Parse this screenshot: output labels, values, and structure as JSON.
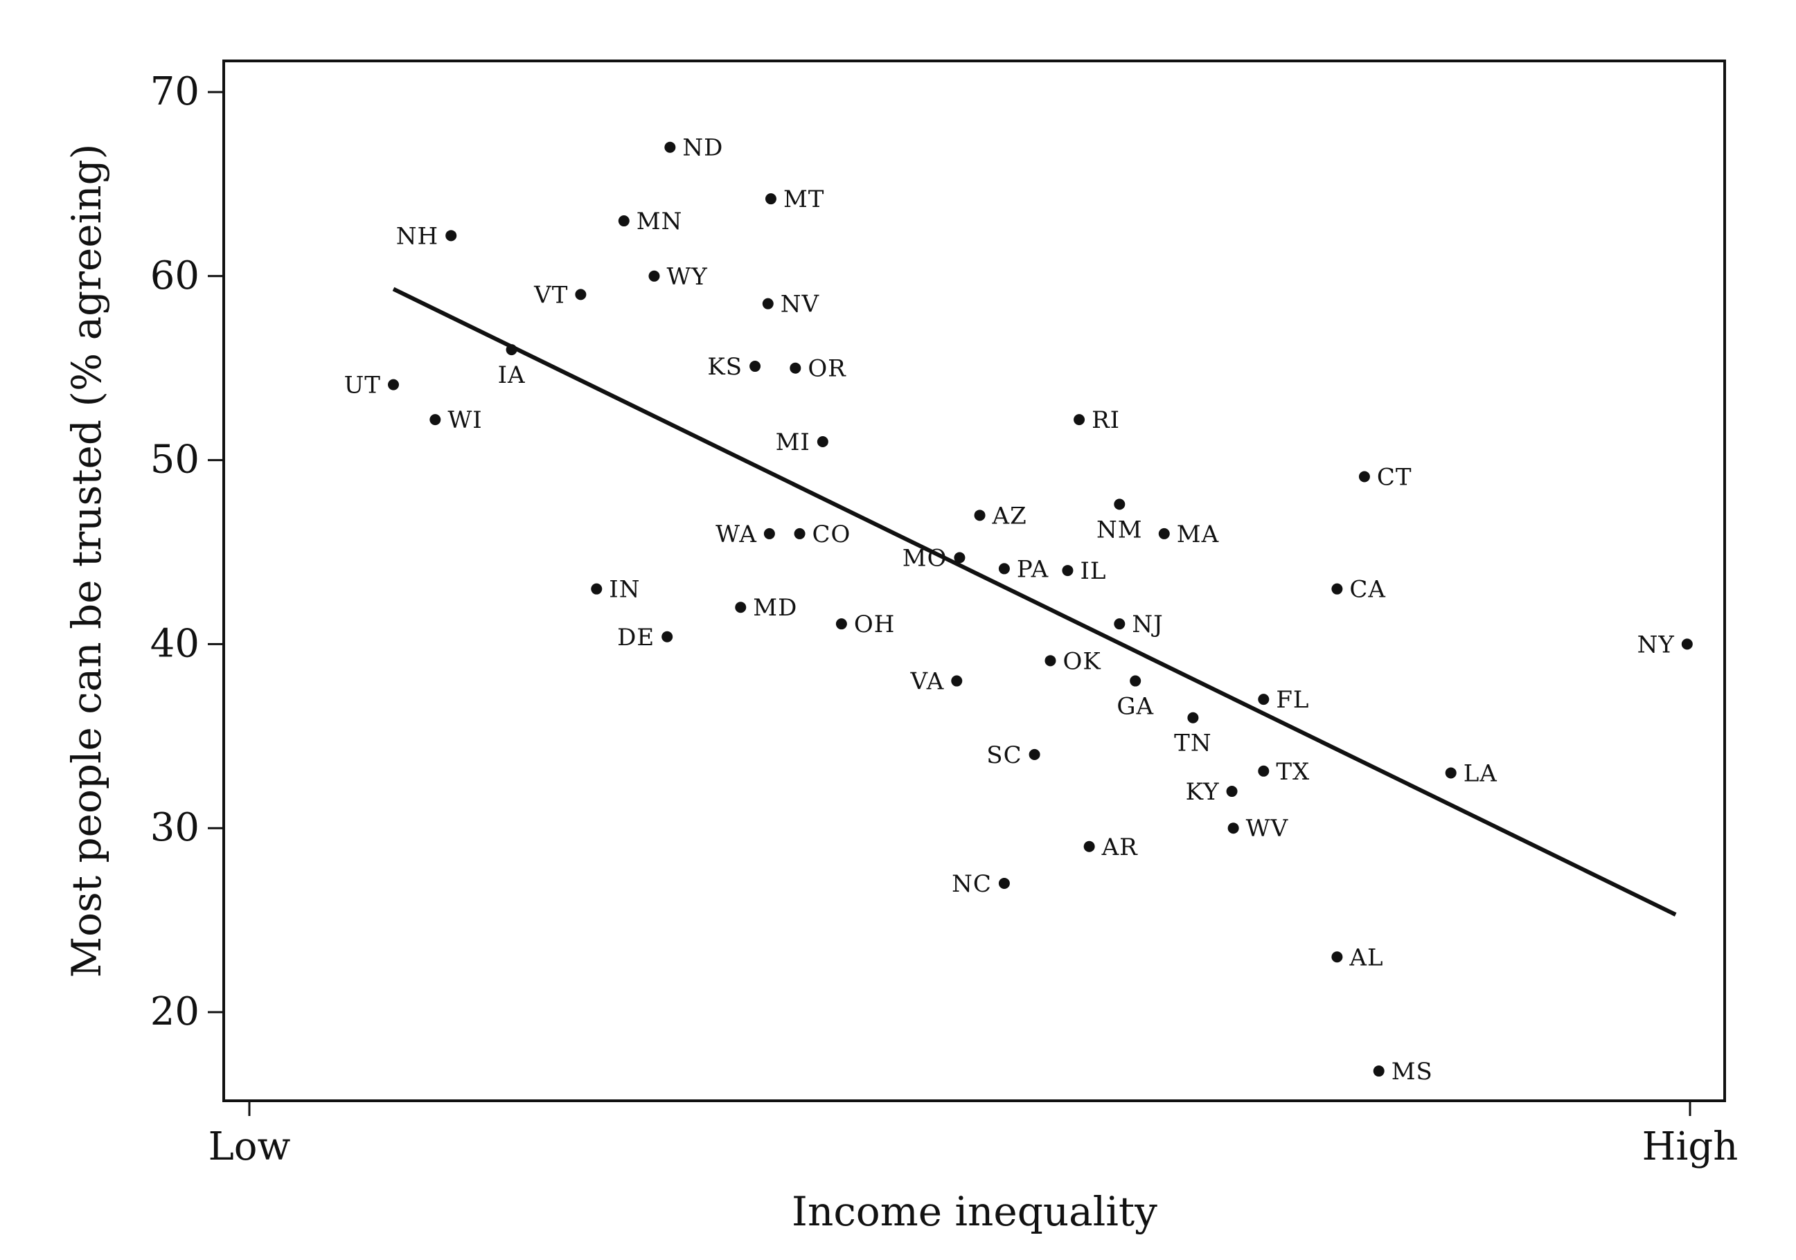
{
  "chart_data": {
    "type": "scatter",
    "xlabel": "Income inequality",
    "ylabel": "Most people can be trusted (% agreeing)",
    "x_tick_labels": [
      "Low",
      "High"
    ],
    "xlim": [
      0,
      100
    ],
    "ylim": [
      15.5,
      72.5
    ],
    "y_ticks": [
      20,
      30,
      40,
      50,
      60,
      70
    ],
    "grid": false,
    "legend": "none",
    "trendline": {
      "x": [
        10,
        99
      ],
      "y": [
        59.3,
        25.3
      ]
    },
    "points": [
      {
        "label": "ND",
        "x": 29.2,
        "y": 67.0
      },
      {
        "label": "MT",
        "x": 36.2,
        "y": 64.2
      },
      {
        "label": "MN",
        "x": 26.0,
        "y": 63.0
      },
      {
        "label": "NH",
        "x": 14.0,
        "y": 62.2
      },
      {
        "label": "WY",
        "x": 28.1,
        "y": 60.0
      },
      {
        "label": "VT",
        "x": 23.0,
        "y": 59.0
      },
      {
        "label": "NV",
        "x": 36.0,
        "y": 58.5
      },
      {
        "label": "IA",
        "x": 18.2,
        "y": 56.0
      },
      {
        "label": "KS",
        "x": 35.1,
        "y": 55.1
      },
      {
        "label": "OR",
        "x": 37.9,
        "y": 55.0
      },
      {
        "label": "UT",
        "x": 10.0,
        "y": 54.1
      },
      {
        "label": "WI",
        "x": 12.9,
        "y": 52.2
      },
      {
        "label": "RI",
        "x": 57.6,
        "y": 52.2
      },
      {
        "label": "MI",
        "x": 39.8,
        "y": 51.0
      },
      {
        "label": "CT",
        "x": 77.4,
        "y": 49.1
      },
      {
        "label": "NM",
        "x": 60.4,
        "y": 47.6
      },
      {
        "label": "AZ",
        "x": 50.7,
        "y": 47.0
      },
      {
        "label": "WA",
        "x": 36.1,
        "y": 46.0
      },
      {
        "label": "CO",
        "x": 38.2,
        "y": 46.0
      },
      {
        "label": "MA",
        "x": 63.5,
        "y": 46.0
      },
      {
        "label": "MO",
        "x": 49.3,
        "y": 44.7
      },
      {
        "label": "PA",
        "x": 52.4,
        "y": 44.1
      },
      {
        "label": "IL",
        "x": 56.8,
        "y": 44.0
      },
      {
        "label": "IN",
        "x": 24.1,
        "y": 43.0
      },
      {
        "label": "CA",
        "x": 75.5,
        "y": 43.0
      },
      {
        "label": "MD",
        "x": 34.1,
        "y": 42.0
      },
      {
        "label": "OH",
        "x": 41.1,
        "y": 41.1
      },
      {
        "label": "NJ",
        "x": 60.4,
        "y": 41.1
      },
      {
        "label": "DE",
        "x": 29.0,
        "y": 40.4
      },
      {
        "label": "NY",
        "x": 99.8,
        "y": 40.0
      },
      {
        "label": "OK",
        "x": 55.6,
        "y": 39.1
      },
      {
        "label": "VA",
        "x": 49.1,
        "y": 38.0
      },
      {
        "label": "GA",
        "x": 61.5,
        "y": 38.0
      },
      {
        "label": "FL",
        "x": 70.4,
        "y": 37.0
      },
      {
        "label": "TN",
        "x": 65.5,
        "y": 36.0
      },
      {
        "label": "SC",
        "x": 54.5,
        "y": 34.0
      },
      {
        "label": "TX",
        "x": 70.4,
        "y": 33.1
      },
      {
        "label": "LA",
        "x": 83.4,
        "y": 33.0
      },
      {
        "label": "KY",
        "x": 68.2,
        "y": 32.0
      },
      {
        "label": "WV",
        "x": 68.3,
        "y": 30.0
      },
      {
        "label": "AR",
        "x": 58.3,
        "y": 29.0
      },
      {
        "label": "NC",
        "x": 52.4,
        "y": 27.0
      },
      {
        "label": "AL",
        "x": 75.5,
        "y": 23.0
      },
      {
        "label": "MS",
        "x": 78.4,
        "y": 16.8
      }
    ]
  }
}
